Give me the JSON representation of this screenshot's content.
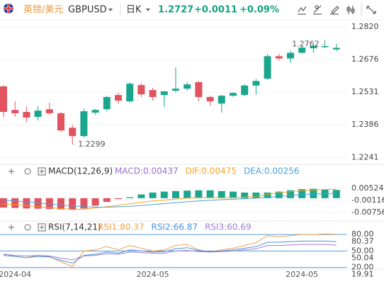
{
  "header": {
    "pair": "英镑/美元",
    "symbol": "GBPUSD",
    "period": "日K",
    "price": "1.2727",
    "change": "+0.0011",
    "change_pct": "+0.09%"
  },
  "chart_data": [
    {
      "type": "candlestick",
      "categories": [
        null,
        "2024-04",
        null,
        null,
        null,
        null,
        null,
        null,
        null,
        null,
        null,
        null,
        null,
        "2024-05",
        null,
        null,
        null,
        null,
        null,
        null,
        null,
        null,
        null,
        null,
        null,
        null,
        "2024-05",
        null,
        null,
        null
      ],
      "open": [
        1.2556,
        1.2452,
        1.2443,
        1.2421,
        1.2455,
        1.2437,
        1.2373,
        1.2336,
        1.244,
        1.2455,
        1.2518,
        1.249,
        1.2562,
        1.254,
        1.2518,
        1.2537,
        1.2546,
        1.2575,
        1.2509,
        1.248,
        1.2515,
        1.2518,
        1.256,
        1.259,
        1.269,
        1.268,
        1.2705,
        1.2725,
        1.273,
        1.272
      ],
      "high": [
        1.2562,
        1.2491,
        1.2468,
        1.2468,
        1.2484,
        1.2443,
        1.2386,
        1.2459,
        1.2455,
        1.2515,
        1.2527,
        1.2575,
        1.257,
        1.255,
        1.2537,
        1.264,
        1.2575,
        1.258,
        1.2515,
        1.2518,
        1.253,
        1.2565,
        1.259,
        1.27,
        1.27,
        1.2715,
        1.2735,
        1.2745,
        1.2762,
        1.2745
      ],
      "low": [
        1.2421,
        1.2421,
        1.2399,
        1.2405,
        1.243,
        1.2355,
        1.2299,
        1.233,
        1.243,
        1.2446,
        1.248,
        1.2484,
        1.2509,
        1.2493,
        1.2465,
        1.253,
        1.2537,
        1.249,
        1.247,
        1.244,
        1.251,
        1.2512,
        1.252,
        1.2585,
        1.267,
        1.266,
        1.27,
        1.2705,
        1.2725,
        1.2712
      ],
      "close": [
        1.2443,
        1.2437,
        1.2418,
        1.2449,
        1.2437,
        1.2361,
        1.2336,
        1.2446,
        1.2452,
        1.2509,
        1.2493,
        1.2568,
        1.2521,
        1.2509,
        1.2534,
        1.2546,
        1.2565,
        1.2509,
        1.249,
        1.2515,
        1.2527,
        1.256,
        1.258,
        1.269,
        1.268,
        1.2705,
        1.2728,
        1.2735,
        1.2735,
        1.2727
      ],
      "up_color": "#1aa68c",
      "down_color": "#e0535f",
      "high_label": "1.2762",
      "low_label": "1.2299",
      "ylim": [
        1.2211,
        1.2851
      ],
      "yticks": [
        {
          "value": 1.282,
          "label": "1.2820"
        },
        1.2676,
        1.2531,
        1.2386,
        1.2241
      ]
    },
    {
      "type": "macd",
      "title": "MACD(12,26,9)",
      "series": [
        {
          "label": "MACD:0.00437",
          "color": "#9b6fd0",
          "up_color": "#1aa68c",
          "down_color": "#e0535f",
          "values": [
            -0.005,
            -0.0052,
            -0.0055,
            -0.0056,
            -0.0058,
            -0.006,
            -0.0062,
            -0.0055,
            -0.004,
            -0.002,
            -0.0005,
            0.0005,
            0.002,
            0.003,
            0.0035,
            0.0038,
            0.004,
            0.0042,
            0.0042,
            0.0038,
            0.0035,
            0.003,
            0.003,
            0.003,
            0.0035,
            0.0042,
            0.0048,
            0.005,
            0.0045,
            0.00437
          ]
        },
        {
          "label": "DIF:0.00475",
          "color": "#f5a623",
          "values": [
            -0.003,
            -0.0035,
            -0.004,
            -0.0045,
            -0.005,
            -0.0055,
            -0.006,
            -0.0058,
            -0.0052,
            -0.0045,
            -0.0038,
            -0.003,
            -0.0022,
            -0.0015,
            -0.001,
            -0.0005,
            0.0,
            0.0003,
            0.0003,
            0.0002,
            0.0003,
            0.0006,
            0.001,
            0.002,
            0.0028,
            0.0035,
            0.004,
            0.0044,
            0.0046,
            0.00475
          ]
        },
        {
          "label": "DEA:0.00256",
          "color": "#4aa3df",
          "values": [
            -0.001,
            -0.0015,
            -0.002,
            -0.0026,
            -0.0031,
            -0.0036,
            -0.0041,
            -0.0045,
            -0.0048,
            -0.0048,
            -0.0046,
            -0.0043,
            -0.0039,
            -0.0034,
            -0.0029,
            -0.0024,
            -0.0019,
            -0.0015,
            -0.0011,
            -0.0008,
            -0.0006,
            -0.0003,
            0.0,
            0.0004,
            0.0009,
            0.0014,
            0.0019,
            0.0022,
            0.0024,
            0.00256
          ]
        }
      ],
      "ylim": [
        -0.0095,
        0.0105
      ],
      "yticks": [
        0.00524,
        -0.00116,
        -0.00756
      ]
    },
    {
      "type": "line",
      "title": "RSI(7,14,21)",
      "series": [
        {
          "label": "RSI1:80.37",
          "color": "#f0a050",
          "values": [
            45,
            40,
            38,
            42,
            40,
            30,
            22,
            50,
            52,
            58,
            52,
            60,
            55,
            50,
            52,
            60,
            62,
            52,
            48,
            52,
            55,
            60,
            65,
            78,
            76,
            78,
            80,
            80,
            81,
            80.37
          ]
        },
        {
          "label": "RSI2:66.87",
          "color": "#4a90d9",
          "values": [
            42,
            40,
            38,
            40,
            39,
            33,
            28,
            42,
            44,
            48,
            46,
            52,
            50,
            48,
            49,
            54,
            56,
            51,
            49,
            50,
            52,
            55,
            58,
            66,
            66,
            67,
            68,
            68,
            68,
            66.87
          ]
        },
        {
          "label": "RSI3:60.69",
          "color": "#9b7fd4",
          "values": [
            44,
            42,
            41,
            42,
            41,
            37,
            34,
            41,
            42,
            45,
            44,
            48,
            47,
            46,
            46,
            50,
            51,
            49,
            48,
            49,
            50,
            52,
            54,
            60,
            60,
            61,
            62,
            62,
            62,
            60.69
          ]
        }
      ],
      "ylim": [
        17,
        84
      ],
      "yticks": [
        {
          "value": 80,
          "label": "80.00"
        },
        {
          "value": 50,
          "label": "50.00"
        },
        {
          "value": 20,
          "label": "20.00"
        }
      ],
      "axis_tags": [
        {
          "value": 80.37,
          "label": "80.37"
        },
        {
          "value": 50.04,
          "label": "50.04"
        },
        {
          "value": 19.91,
          "label": "19.91"
        }
      ]
    }
  ]
}
